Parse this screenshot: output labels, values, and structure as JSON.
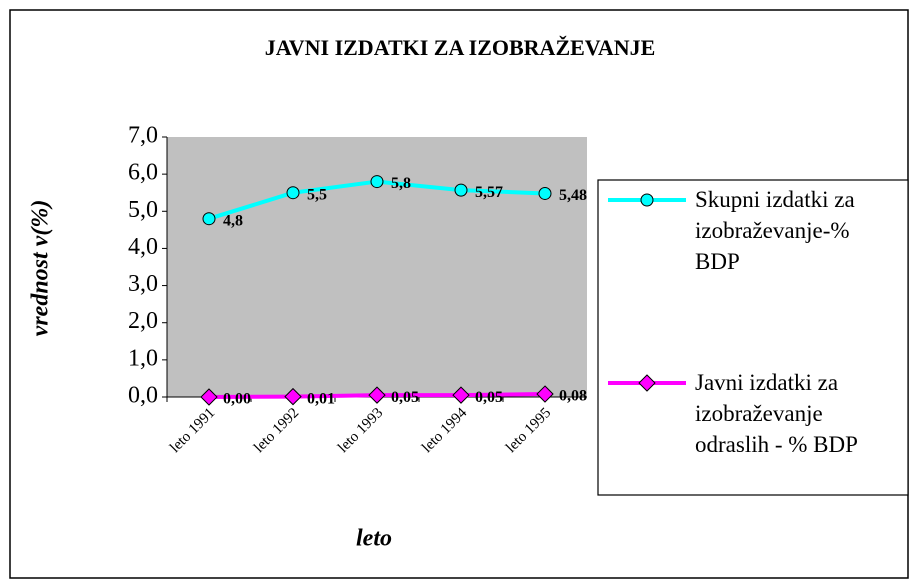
{
  "chart_data": {
    "type": "line",
    "title": "JAVNI IZDATKI ZA IZOBRAŽEVANJE",
    "y_label": "vrednost v(%)",
    "x_label": "leto",
    "categories": [
      "leto 1991",
      "leto 1992",
      "leto 1993",
      "leto 1994",
      "leto 1995"
    ],
    "series": [
      {
        "name": "Skupni izdatki za izobraževanje-% BDP",
        "color": "#00ffff",
        "marker": "circle",
        "values": [
          4.8,
          5.5,
          5.8,
          5.57,
          5.48
        ],
        "value_labels": [
          "4,8",
          "5,5",
          "5,8",
          "5,57",
          "5,48"
        ]
      },
      {
        "name": "Javni izdatki za izobraževanje odraslih - % BDP",
        "color": "#ff00ff",
        "marker": "diamond",
        "values": [
          0,
          0.01,
          0.05,
          0.05,
          0.08
        ],
        "value_labels": [
          "0,00",
          "0,01",
          "0,05",
          "0,05",
          "0,08"
        ]
      }
    ],
    "ylim": [
      0,
      7
    ],
    "yticks": [
      {
        "value": 0,
        "label": "0,0"
      },
      {
        "value": 1,
        "label": "1,0"
      },
      {
        "value": 2,
        "label": "2,0"
      },
      {
        "value": 3,
        "label": "3,0"
      },
      {
        "value": 4,
        "label": "4,0"
      },
      {
        "value": 5,
        "label": "5,0"
      },
      {
        "value": 6,
        "label": "6,0"
      },
      {
        "value": 7,
        "label": "7,0"
      }
    ],
    "grid": false,
    "plot_background": "#c0c0c0",
    "legend": "right"
  }
}
